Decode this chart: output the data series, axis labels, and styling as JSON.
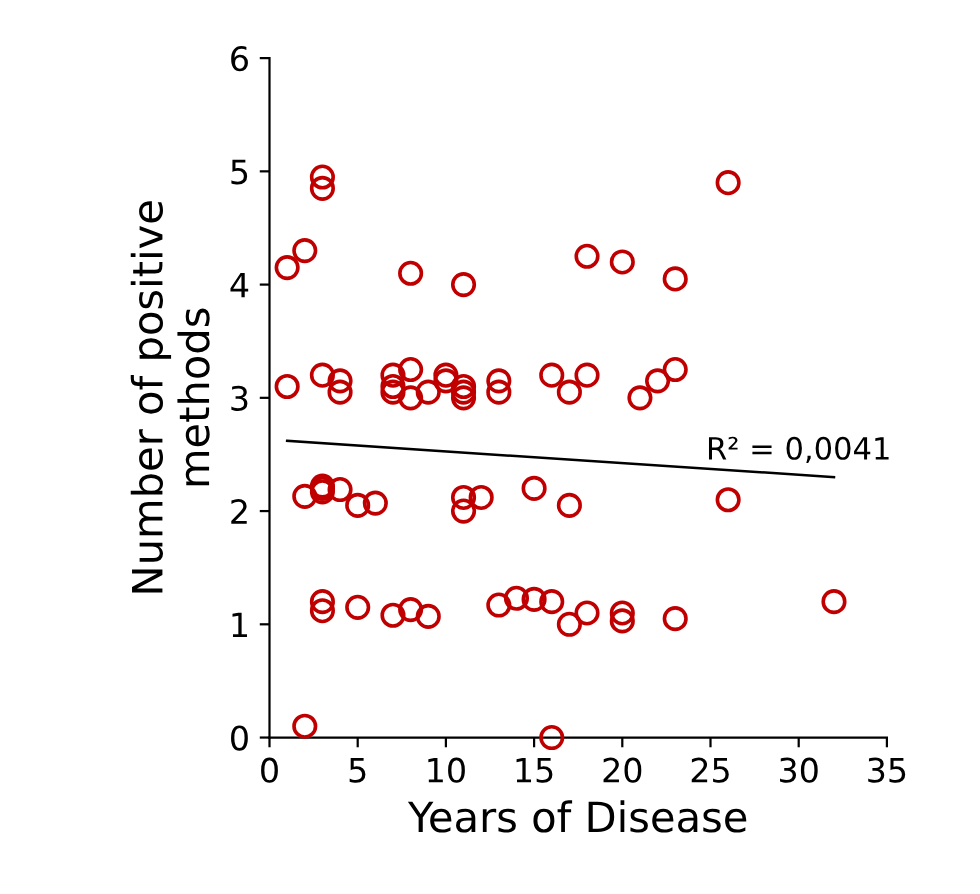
{
  "chart_data": {
    "type": "scatter",
    "xlabel": "Years of Disease",
    "ylabel": "Number of positive\nmethods",
    "xlim": [
      0,
      35
    ],
    "ylim": [
      0,
      6
    ],
    "xticks": [
      0,
      5,
      10,
      15,
      20,
      25,
      30,
      35
    ],
    "yticks": [
      0,
      1,
      2,
      3,
      4,
      5,
      6
    ],
    "grid": false,
    "legend": false,
    "marker": "circle",
    "annotations": [
      {
        "text": "R² = 0,0041",
        "x": 30,
        "y": 2.4
      }
    ],
    "series": [
      {
        "color": "#c00000",
        "x": [
          1,
          2,
          3,
          3,
          8,
          11,
          18,
          20,
          23,
          26,
          1,
          3,
          4,
          4,
          7,
          7,
          7,
          8,
          8,
          9,
          10,
          10,
          11,
          11,
          11,
          13,
          13,
          16,
          17,
          18,
          21,
          22,
          23,
          2,
          3,
          3,
          3,
          4,
          5,
          6,
          11,
          11,
          12,
          15,
          17,
          26,
          3,
          3,
          5,
          7,
          8,
          9,
          13,
          14,
          15,
          16,
          17,
          18,
          20,
          20,
          23,
          32,
          2,
          16
        ],
        "values": [
          4.15,
          4.3,
          4.95,
          4.85,
          4.1,
          4.0,
          4.25,
          4.2,
          4.05,
          4.9,
          3.1,
          3.2,
          3.15,
          3.05,
          3.2,
          3.1,
          3.05,
          3.25,
          3.0,
          3.05,
          3.2,
          3.15,
          3.1,
          3.0,
          3.05,
          3.15,
          3.05,
          3.2,
          3.05,
          3.2,
          3.0,
          3.15,
          3.25,
          2.13,
          2.17,
          2.2,
          2.22,
          2.19,
          2.05,
          2.07,
          2.12,
          2.0,
          2.12,
          2.2,
          2.05,
          2.1,
          1.2,
          1.12,
          1.15,
          1.08,
          1.13,
          1.07,
          1.17,
          1.23,
          1.22,
          1.2,
          1.0,
          1.1,
          1.1,
          1.03,
          1.05,
          1.2,
          0.1,
          0.0
        ]
      },
      {
        "type": "line",
        "color": "#000000",
        "line_style": "solid",
        "marker": "none",
        "x": [
          1,
          32
        ],
        "values": [
          2.62,
          2.3
        ]
      }
    ]
  }
}
